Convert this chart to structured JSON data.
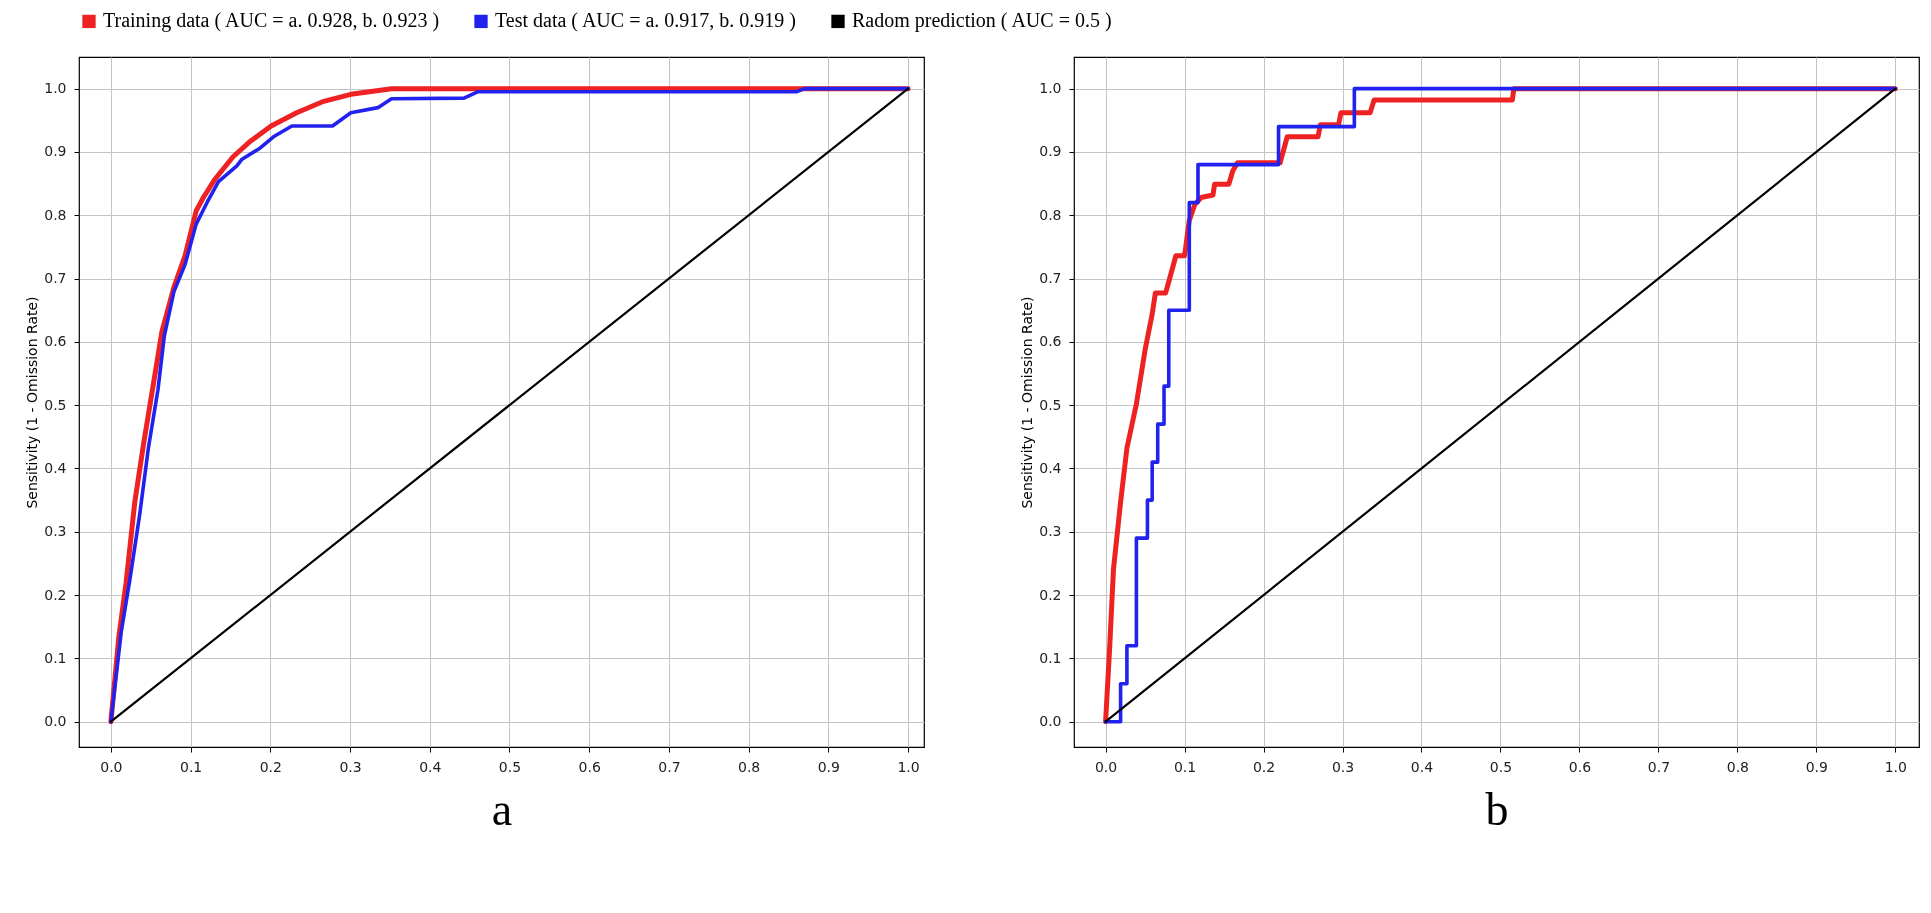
{
  "chart_data": [
    {
      "type": "line",
      "xlabel": "a",
      "ylabel": "Sensitivity (1 - Omission Rate)",
      "xlim": [
        -0.04,
        1.02
      ],
      "ylim": [
        -0.04,
        1.05
      ],
      "xticks": [
        {
          "value": 0,
          "label": "0.0"
        },
        {
          "value": 0.1,
          "label": "0.1"
        },
        {
          "value": 0.2,
          "label": "0.2"
        },
        {
          "value": 0.3,
          "label": "0.3"
        },
        {
          "value": 0.4,
          "label": "0.4"
        },
        {
          "value": 0.5,
          "label": "0.5"
        },
        {
          "value": 0.6,
          "label": "0.6"
        },
        {
          "value": 0.7,
          "label": "0.7"
        },
        {
          "value": 0.8,
          "label": "0.8"
        },
        {
          "value": 0.9,
          "label": "0.9"
        },
        {
          "value": 1,
          "label": "1.0"
        }
      ],
      "yticks": [
        {
          "value": 0,
          "label": "0.0"
        },
        {
          "value": 0.1,
          "label": "0.1"
        },
        {
          "value": 0.2,
          "label": "0.2"
        },
        {
          "value": 0.3,
          "label": "0.3"
        },
        {
          "value": 0.4,
          "label": "0.4"
        },
        {
          "value": 0.5,
          "label": "0.5"
        },
        {
          "value": 0.6,
          "label": "0.6"
        },
        {
          "value": 0.7,
          "label": "0.7"
        },
        {
          "value": 0.8,
          "label": "0.8"
        },
        {
          "value": 0.9,
          "label": "0.9"
        },
        {
          "value": 1,
          "label": "1.0"
        }
      ],
      "grid": true,
      "legend": "top",
      "series": [
        {
          "name": "Training data ( AUC = a. 0.928, b. 0.923 )",
          "color": "#ee2222",
          "x": [
            0,
            0.01,
            0.019,
            0.03,
            0.041,
            0.053,
            0.064,
            0.079,
            0.093,
            0.107,
            0.116,
            0.13,
            0.153,
            0.175,
            0.201,
            0.233,
            0.267,
            0.301,
            0.352,
            1
          ],
          "values": [
            0,
            0.134,
            0.219,
            0.347,
            0.439,
            0.531,
            0.616,
            0.686,
            0.736,
            0.807,
            0.828,
            0.856,
            0.892,
            0.917,
            0.941,
            0.962,
            0.98,
            0.991,
            1,
            1
          ]
        },
        {
          "name": "Test data ( AUC = a. 0.917, b. 0.919 )",
          "color": "#2222ee",
          "x": [
            0,
            0.013,
            0.024,
            0.036,
            0.047,
            0.059,
            0.067,
            0.079,
            0.093,
            0.107,
            0.121,
            0.135,
            0.158,
            0.164,
            0.187,
            0.204,
            0.227,
            0.278,
            0.301,
            0.335,
            0.352,
            0.443,
            0.46,
            0.86,
            0.87,
            1
          ],
          "values": [
            0,
            0.142,
            0.226,
            0.326,
            0.432,
            0.524,
            0.609,
            0.679,
            0.722,
            0.786,
            0.821,
            0.853,
            0.878,
            0.888,
            0.906,
            0.924,
            0.941,
            0.941,
            0.962,
            0.97,
            0.984,
            0.985,
            0.995,
            0.995,
            1,
            1
          ]
        },
        {
          "name": "Radom prediction ( AUC = 0.5 )",
          "color": "#000000",
          "x": [
            0,
            1
          ],
          "values": [
            0,
            1
          ]
        }
      ]
    },
    {
      "type": "line",
      "xlabel": "b",
      "ylabel": "Sensitivity (1 - Omission Rate)",
      "xlim": [
        -0.04,
        1.03
      ],
      "ylim": [
        -0.04,
        1.05
      ],
      "xticks": [
        {
          "value": 0,
          "label": "0.0"
        },
        {
          "value": 0.1,
          "label": "0.1"
        },
        {
          "value": 0.2,
          "label": "0.2"
        },
        {
          "value": 0.3,
          "label": "0.3"
        },
        {
          "value": 0.4,
          "label": "0.4"
        },
        {
          "value": 0.5,
          "label": "0.5"
        },
        {
          "value": 0.6,
          "label": "0.6"
        },
        {
          "value": 0.7,
          "label": "0.7"
        },
        {
          "value": 0.8,
          "label": "0.8"
        },
        {
          "value": 0.9,
          "label": "0.9"
        },
        {
          "value": 1,
          "label": "1.0"
        }
      ],
      "yticks": [
        {
          "value": 0,
          "label": "0.0"
        },
        {
          "value": 0.1,
          "label": "0.1"
        },
        {
          "value": 0.2,
          "label": "0.2"
        },
        {
          "value": 0.3,
          "label": "0.3"
        },
        {
          "value": 0.4,
          "label": "0.4"
        },
        {
          "value": 0.5,
          "label": "0.5"
        },
        {
          "value": 0.6,
          "label": "0.6"
        },
        {
          "value": 0.7,
          "label": "0.7"
        },
        {
          "value": 0.8,
          "label": "0.8"
        },
        {
          "value": 0.9,
          "label": "0.9"
        },
        {
          "value": 1,
          "label": "1.0"
        }
      ],
      "grid": true,
      "series": [
        {
          "color": "#ee2222",
          "x": [
            0,
            0.005,
            0.01,
            0.019,
            0.027,
            0.039,
            0.05,
            0.059,
            0.063,
            0.076,
            0.082,
            0.089,
            0.1,
            0.106,
            0.113,
            0.121,
            0.136,
            0.138,
            0.156,
            0.161,
            0.167,
            0.221,
            0.23,
            0.269,
            0.272,
            0.295,
            0.298,
            0.335,
            0.34,
            0.515,
            0.517,
            1
          ],
          "values": [
            0,
            0.113,
            0.241,
            0.347,
            0.432,
            0.502,
            0.587,
            0.644,
            0.677,
            0.677,
            0.704,
            0.736,
            0.736,
            0.792,
            0.817,
            0.828,
            0.832,
            0.849,
            0.849,
            0.87,
            0.883,
            0.883,
            0.924,
            0.924,
            0.943,
            0.943,
            0.962,
            0.962,
            0.982,
            0.982,
            1,
            1
          ]
        },
        {
          "color": "#2222ee",
          "x": [
            0,
            0.019,
            0.019,
            0.027,
            0.027,
            0.039,
            0.039,
            0.053,
            0.053,
            0.059,
            0.059,
            0.066,
            0.066,
            0.074,
            0.074,
            0.08,
            0.08,
            0.106,
            0.106,
            0.117,
            0.117,
            0.219,
            0.219,
            0.315,
            0.315,
            1
          ],
          "values": [
            0,
            0,
            0.06,
            0.06,
            0.12,
            0.12,
            0.29,
            0.29,
            0.35,
            0.35,
            0.41,
            0.41,
            0.47,
            0.47,
            0.53,
            0.53,
            0.65,
            0.65,
            0.82,
            0.82,
            0.88,
            0.88,
            0.94,
            0.94,
            1,
            1
          ]
        },
        {
          "color": "#000000",
          "x": [
            0,
            1
          ],
          "values": [
            0,
            1
          ]
        }
      ]
    }
  ]
}
